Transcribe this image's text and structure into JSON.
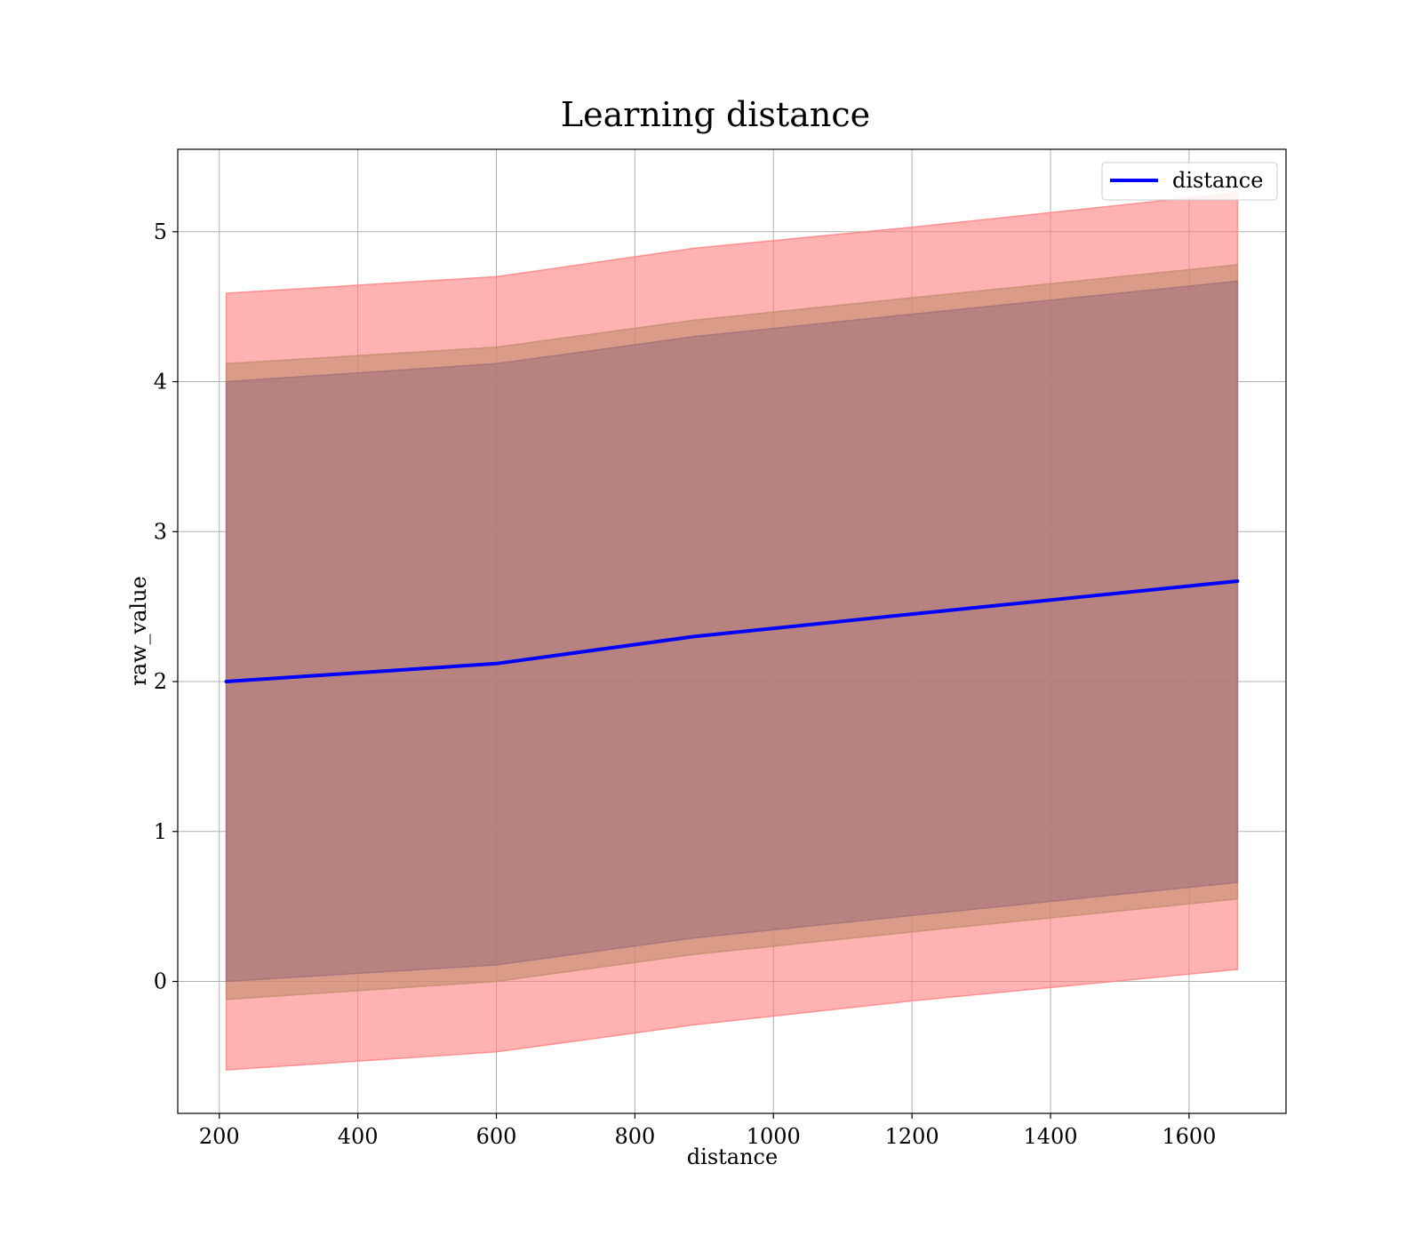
{
  "chart_data": {
    "type": "line",
    "title": "Learning distance",
    "xlabel": "distance",
    "ylabel": "raw_value",
    "xlim": [
      140,
      1740
    ],
    "ylim": [
      -0.88,
      5.55
    ],
    "xticks": [
      200,
      400,
      600,
      800,
      1000,
      1200,
      1400,
      1600
    ],
    "yticks": [
      0,
      1,
      2,
      3,
      4,
      5
    ],
    "grid": true,
    "legend": {
      "placement": "top-right",
      "entries": [
        "distance"
      ]
    },
    "x": [
      210,
      600,
      885,
      1200,
      1670
    ],
    "series": [
      {
        "name": "distance",
        "color": "#0000ff",
        "values": [
          2.0,
          2.12,
          2.3,
          2.45,
          2.67
        ]
      }
    ],
    "bands": [
      {
        "level": "outer",
        "color": "#ff7f7f",
        "upper": [
          4.59,
          4.7,
          4.89,
          5.03,
          5.26
        ],
        "lower": [
          -0.59,
          -0.47,
          -0.29,
          -0.13,
          0.08
        ]
      },
      {
        "level": "middle",
        "color": "#c28d6e",
        "upper": [
          4.12,
          4.23,
          4.41,
          4.56,
          4.78
        ],
        "lower": [
          -0.12,
          0.0,
          0.18,
          0.33,
          0.55
        ]
      },
      {
        "level": "inner",
        "color": "#a07179",
        "upper": [
          4.0,
          4.12,
          4.3,
          4.45,
          4.67
        ],
        "lower": [
          0.0,
          0.11,
          0.29,
          0.44,
          0.66
        ]
      }
    ]
  }
}
